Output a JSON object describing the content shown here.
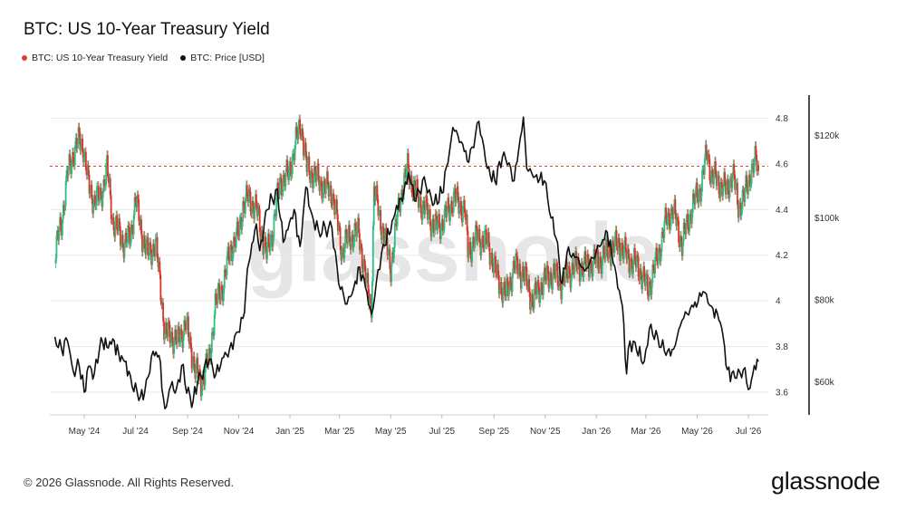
{
  "title": "BTC: US 10-Year Treasury Yield",
  "legend": [
    {
      "label": "BTC: US 10-Year Treasury Yield",
      "color": "#e23a2e"
    },
    {
      "label": "BTC: Price [USD]",
      "color": "#111111"
    }
  ],
  "watermark": "glassnode",
  "footer": {
    "copyright": "© 2026 Glassnode. All Rights Reserved.",
    "brand": "glassnode"
  },
  "colors": {
    "up": "#2fbf85",
    "down": "#d9362b",
    "price": "#111111",
    "reference": "#e23a2e",
    "grid": "#e9e9e9"
  },
  "chart_data": {
    "type": "line",
    "title": "BTC: US 10-Year Treasury Yield",
    "x_tick_labels": [
      "May '24",
      "Jul '24",
      "Sep '24",
      "Nov '24",
      "Jan '25",
      "Mar '25",
      "May '25",
      "Jul '25",
      "Sep '25",
      "Nov '25",
      "Jan '26",
      "Mar '26",
      "May '26",
      "Jul '26"
    ],
    "y_left": {
      "ticks": [
        3.6,
        3.8,
        4,
        4.2,
        4.4,
        4.6,
        4.8
      ],
      "tick_labels": [
        "3.6",
        "3.8",
        "4",
        "4.2",
        "4.4",
        "4.6",
        "4.8"
      ],
      "range": [
        3.5,
        4.85
      ]
    },
    "y_right": {
      "ticks": [
        60000,
        80000,
        100000,
        120000
      ],
      "tick_labels": [
        "$60k",
        "$80k",
        "$100k",
        "$120k"
      ],
      "range": [
        52000,
        127000
      ]
    },
    "reference_line": {
      "y": 4.59,
      "style": "dashed"
    },
    "grid": true,
    "series": [
      {
        "name": "BTC: US 10-Year Treasury Yield",
        "axis": "left",
        "style": "candlestick",
        "points": [
          [
            "2024-03-27",
            4.2
          ],
          [
            "2024-04-04",
            4.35
          ],
          [
            "2024-04-11",
            4.55
          ],
          [
            "2024-04-18",
            4.65
          ],
          [
            "2024-04-25",
            4.7
          ],
          [
            "2024-04-30",
            4.68
          ],
          [
            "2024-05-06",
            4.5
          ],
          [
            "2024-05-13",
            4.44
          ],
          [
            "2024-05-20",
            4.45
          ],
          [
            "2024-05-28",
            4.58
          ],
          [
            "2024-06-04",
            4.35
          ],
          [
            "2024-06-11",
            4.3
          ],
          [
            "2024-06-18",
            4.25
          ],
          [
            "2024-06-25",
            4.28
          ],
          [
            "2024-07-01",
            4.45
          ],
          [
            "2024-07-08",
            4.3
          ],
          [
            "2024-07-16",
            4.2
          ],
          [
            "2024-07-25",
            4.25
          ],
          [
            "2024-08-01",
            4.02
          ],
          [
            "2024-08-05",
            3.85
          ],
          [
            "2024-08-12",
            3.85
          ],
          [
            "2024-08-20",
            3.82
          ],
          [
            "2024-08-30",
            3.9
          ],
          [
            "2024-09-10",
            3.7
          ],
          [
            "2024-09-17",
            3.64
          ],
          [
            "2024-09-27",
            3.75
          ],
          [
            "2024-10-04",
            3.98
          ],
          [
            "2024-10-14",
            4.08
          ],
          [
            "2024-10-23",
            4.24
          ],
          [
            "2024-10-31",
            4.28
          ],
          [
            "2024-11-06",
            4.42
          ],
          [
            "2024-11-13",
            4.45
          ],
          [
            "2024-11-22",
            4.4
          ],
          [
            "2024-12-04",
            4.2
          ],
          [
            "2024-12-12",
            4.32
          ],
          [
            "2024-12-20",
            4.52
          ],
          [
            "2024-12-30",
            4.55
          ],
          [
            "2025-01-07",
            4.68
          ],
          [
            "2025-01-14",
            4.78
          ],
          [
            "2025-01-21",
            4.58
          ],
          [
            "2025-01-30",
            4.55
          ],
          [
            "2025-02-10",
            4.5
          ],
          [
            "2025-02-20",
            4.48
          ],
          [
            "2025-03-04",
            4.22
          ],
          [
            "2025-03-12",
            4.28
          ],
          [
            "2025-03-24",
            4.3
          ],
          [
            "2025-04-03",
            4.05
          ],
          [
            "2025-04-08",
            3.98
          ],
          [
            "2025-04-11",
            4.48
          ],
          [
            "2025-04-21",
            4.32
          ],
          [
            "2025-05-01",
            4.15
          ],
          [
            "2025-05-12",
            4.45
          ],
          [
            "2025-05-21",
            4.58
          ],
          [
            "2025-06-02",
            4.45
          ],
          [
            "2025-06-11",
            4.4
          ],
          [
            "2025-06-23",
            4.32
          ],
          [
            "2025-07-03",
            4.35
          ],
          [
            "2025-07-15",
            4.45
          ],
          [
            "2025-07-28",
            4.4
          ],
          [
            "2025-08-01",
            4.22
          ],
          [
            "2025-08-12",
            4.28
          ],
          [
            "2025-08-25",
            4.25
          ],
          [
            "2025-09-05",
            4.1
          ],
          [
            "2025-09-15",
            4.02
          ],
          [
            "2025-09-25",
            4.15
          ],
          [
            "2025-10-06",
            4.12
          ],
          [
            "2025-10-17",
            4.0
          ],
          [
            "2025-10-29",
            4.08
          ],
          [
            "2025-11-10",
            4.12
          ],
          [
            "2025-11-20",
            4.08
          ],
          [
            "2025-12-05",
            4.15
          ],
          [
            "2025-12-17",
            4.15
          ],
          [
            "2026-01-05",
            4.18
          ],
          [
            "2026-01-16",
            4.22
          ],
          [
            "2026-01-28",
            4.25
          ],
          [
            "2026-02-09",
            4.18
          ],
          [
            "2026-02-20",
            4.15
          ],
          [
            "2026-03-03",
            4.05
          ],
          [
            "2026-03-12",
            4.15
          ],
          [
            "2026-03-25",
            4.35
          ],
          [
            "2026-04-02",
            4.4
          ],
          [
            "2026-04-13",
            4.25
          ],
          [
            "2026-04-24",
            4.4
          ],
          [
            "2026-05-05",
            4.5
          ],
          [
            "2026-05-13",
            4.65
          ],
          [
            "2026-05-18",
            4.55
          ],
          [
            "2026-05-27",
            4.52
          ],
          [
            "2026-06-05",
            4.48
          ],
          [
            "2026-06-12",
            4.56
          ],
          [
            "2026-06-19",
            4.42
          ],
          [
            "2026-06-26",
            4.45
          ],
          [
            "2026-07-03",
            4.56
          ],
          [
            "2026-07-08",
            4.59
          ],
          [
            "2026-07-10",
            4.62
          ],
          [
            "2026-07-13",
            4.57
          ]
        ]
      },
      {
        "name": "BTC: Price [USD]",
        "axis": "right",
        "style": "line",
        "points": [
          [
            "2024-03-27",
            71000
          ],
          [
            "2024-04-04",
            68000
          ],
          [
            "2024-04-11",
            70000
          ],
          [
            "2024-04-18",
            62500
          ],
          [
            "2024-04-25",
            64000
          ],
          [
            "2024-05-01",
            57500
          ],
          [
            "2024-05-06",
            63800
          ],
          [
            "2024-05-13",
            62000
          ],
          [
            "2024-05-21",
            70800
          ],
          [
            "2024-05-28",
            68500
          ],
          [
            "2024-06-04",
            70500
          ],
          [
            "2024-06-11",
            67000
          ],
          [
            "2024-06-18",
            65000
          ],
          [
            "2024-06-25",
            61500
          ],
          [
            "2024-07-05",
            55500
          ],
          [
            "2024-07-12",
            57500
          ],
          [
            "2024-07-22",
            67500
          ],
          [
            "2024-07-29",
            66500
          ],
          [
            "2024-08-05",
            53500
          ],
          [
            "2024-08-12",
            59000
          ],
          [
            "2024-08-19",
            58500
          ],
          [
            "2024-08-25",
            64000
          ],
          [
            "2024-09-06",
            53800
          ],
          [
            "2024-09-13",
            60000
          ],
          [
            "2024-09-27",
            65500
          ],
          [
            "2024-10-03",
            61000
          ],
          [
            "2024-10-14",
            66000
          ],
          [
            "2024-10-21",
            68000
          ],
          [
            "2024-10-29",
            72000
          ],
          [
            "2024-11-06",
            75500
          ],
          [
            "2024-11-13",
            89000
          ],
          [
            "2024-11-22",
            98500
          ],
          [
            "2024-11-26",
            92000
          ],
          [
            "2024-12-05",
            102000
          ],
          [
            "2024-12-17",
            107000
          ],
          [
            "2024-12-24",
            94000
          ],
          [
            "2025-01-06",
            102000
          ],
          [
            "2025-01-13",
            93000
          ],
          [
            "2025-01-20",
            107500
          ],
          [
            "2025-01-27",
            101000
          ],
          [
            "2025-02-04",
            97000
          ],
          [
            "2025-02-20",
            97500
          ],
          [
            "2025-02-28",
            84000
          ],
          [
            "2025-03-10",
            79000
          ],
          [
            "2025-03-18",
            83000
          ],
          [
            "2025-03-25",
            88000
          ],
          [
            "2025-04-01",
            83000
          ],
          [
            "2025-04-08",
            76500
          ],
          [
            "2025-04-14",
            84500
          ],
          [
            "2025-04-22",
            93500
          ],
          [
            "2025-05-01",
            96500
          ],
          [
            "2025-05-08",
            103000
          ],
          [
            "2025-05-15",
            104000
          ],
          [
            "2025-05-22",
            111000
          ],
          [
            "2025-05-31",
            104000
          ],
          [
            "2025-06-10",
            110000
          ],
          [
            "2025-06-20",
            103000
          ],
          [
            "2025-07-01",
            106000
          ],
          [
            "2025-07-10",
            116000
          ],
          [
            "2025-07-14",
            122000
          ],
          [
            "2025-07-24",
            118500
          ],
          [
            "2025-08-02",
            113500
          ],
          [
            "2025-08-14",
            123500
          ],
          [
            "2025-08-24",
            112000
          ],
          [
            "2025-09-02",
            109000
          ],
          [
            "2025-09-13",
            116000
          ],
          [
            "2025-09-25",
            109000
          ],
          [
            "2025-10-06",
            124500
          ],
          [
            "2025-10-10",
            112000
          ],
          [
            "2025-10-20",
            110000
          ],
          [
            "2025-10-31",
            109000
          ],
          [
            "2025-11-06",
            101500
          ],
          [
            "2025-11-14",
            95000
          ],
          [
            "2025-11-21",
            84000
          ],
          [
            "2025-11-27",
            91500
          ],
          [
            "2025-12-08",
            90500
          ],
          [
            "2025-12-18",
            87000
          ],
          [
            "2026-01-05",
            93000
          ],
          [
            "2026-01-14",
            96500
          ],
          [
            "2026-01-21",
            89000
          ],
          [
            "2026-02-01",
            78500
          ],
          [
            "2026-02-06",
            62000
          ],
          [
            "2026-02-10",
            70000
          ],
          [
            "2026-02-18",
            67500
          ],
          [
            "2026-02-27",
            65000
          ],
          [
            "2026-03-05",
            73000
          ],
          [
            "2026-03-15",
            71000
          ],
          [
            "2026-03-25",
            66500
          ],
          [
            "2026-04-03",
            68000
          ],
          [
            "2026-04-13",
            75000
          ],
          [
            "2026-04-23",
            78000
          ],
          [
            "2026-05-02",
            79500
          ],
          [
            "2026-05-08",
            82000
          ],
          [
            "2026-05-18",
            78500
          ],
          [
            "2026-05-27",
            75000
          ],
          [
            "2026-06-01",
            71000
          ],
          [
            "2026-06-06",
            63000
          ],
          [
            "2026-06-15",
            61000
          ],
          [
            "2026-06-25",
            63000
          ],
          [
            "2026-07-03",
            58500
          ],
          [
            "2026-07-08",
            64000
          ],
          [
            "2026-07-10",
            63000
          ],
          [
            "2026-07-13",
            65000
          ]
        ]
      }
    ]
  }
}
